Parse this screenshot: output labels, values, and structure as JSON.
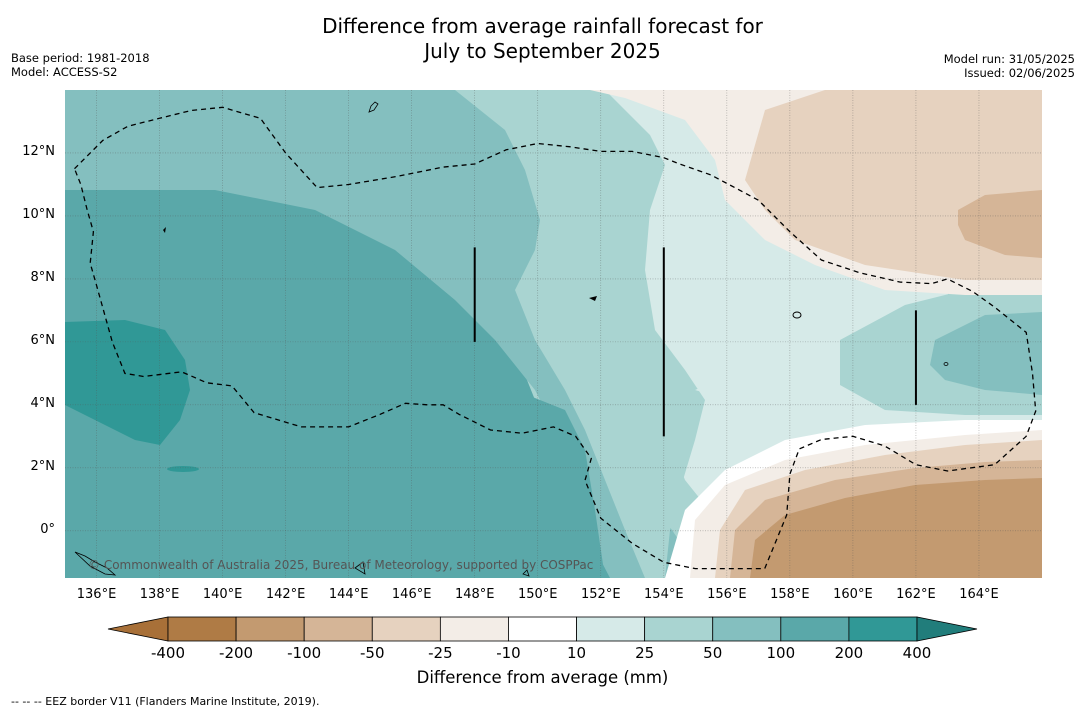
{
  "header": {
    "title_line1": "Difference from average rainfall forecast for",
    "title_line2": "July to September 2025",
    "base_period": "Base period: 1981-2018",
    "model": "Model: ACCESS-S2",
    "model_run": "Model run: 31/05/2025",
    "issued": "Issued: 02/06/2025"
  },
  "map": {
    "lon_range": [
      135,
      166
    ],
    "lat_range": [
      -1.5,
      14
    ],
    "lat_ticks": [
      {
        "value": 12,
        "label": "12°N"
      },
      {
        "value": 10,
        "label": "10°N"
      },
      {
        "value": 8,
        "label": "8°N"
      },
      {
        "value": 6,
        "label": "6°N"
      },
      {
        "value": 4,
        "label": "4°N"
      },
      {
        "value": 2,
        "label": "2°N"
      },
      {
        "value": 0,
        "label": "0°"
      }
    ],
    "lon_ticks": [
      {
        "value": 136,
        "label": "136°E"
      },
      {
        "value": 138,
        "label": "138°E"
      },
      {
        "value": 140,
        "label": "140°E"
      },
      {
        "value": 142,
        "label": "142°E"
      },
      {
        "value": 144,
        "label": "144°E"
      },
      {
        "value": 146,
        "label": "146°E"
      },
      {
        "value": 148,
        "label": "148°E"
      },
      {
        "value": 150,
        "label": "150°E"
      },
      {
        "value": 152,
        "label": "152°E"
      },
      {
        "value": 154,
        "label": "154°E"
      },
      {
        "value": 156,
        "label": "156°E"
      },
      {
        "value": 158,
        "label": "158°E"
      },
      {
        "value": 160,
        "label": "160°E"
      },
      {
        "value": 162,
        "label": "162°E"
      },
      {
        "value": 164,
        "label": "164°E"
      }
    ],
    "copyright": "© Commonwealth of Australia 2025, Bureau of Meteorology, supported by COSPPac",
    "eez_border": [
      [
        135.3,
        11.5
      ],
      [
        136.2,
        12.4
      ],
      [
        137.0,
        12.85
      ],
      [
        138.0,
        13.1
      ],
      [
        139.0,
        13.35
      ],
      [
        140.0,
        13.45
      ],
      [
        141.2,
        13.1
      ],
      [
        142.0,
        12.0
      ],
      [
        143.0,
        10.9
      ],
      [
        144.0,
        11.0
      ],
      [
        145.5,
        11.25
      ],
      [
        147.0,
        11.55
      ],
      [
        148.0,
        11.65
      ],
      [
        149.0,
        12.1
      ],
      [
        150.0,
        12.3
      ],
      [
        151.0,
        12.2
      ],
      [
        152.0,
        12.05
      ],
      [
        153.0,
        12.05
      ],
      [
        154.0,
        11.85
      ],
      [
        154.5,
        11.65
      ],
      [
        155.5,
        11.3
      ],
      [
        157.0,
        10.5
      ],
      [
        158.0,
        9.5
      ],
      [
        159.0,
        8.6
      ],
      [
        160.2,
        8.2
      ],
      [
        161.5,
        7.9
      ],
      [
        162.5,
        7.85
      ],
      [
        163.0,
        8.0
      ],
      [
        163.8,
        7.6
      ],
      [
        164.5,
        7.1
      ],
      [
        165.5,
        6.3
      ],
      [
        165.7,
        5.0
      ],
      [
        165.8,
        3.8
      ],
      [
        165.5,
        3.0
      ],
      [
        164.5,
        2.1
      ],
      [
        163.0,
        1.9
      ],
      [
        162.0,
        2.1
      ],
      [
        161.0,
        2.7
      ],
      [
        160.0,
        3.0
      ],
      [
        159.0,
        2.9
      ],
      [
        158.3,
        2.6
      ],
      [
        158.0,
        1.8
      ],
      [
        157.9,
        0.5
      ],
      [
        157.2,
        -1.2
      ],
      [
        156.8,
        -1.2
      ],
      [
        156.0,
        -1.2
      ],
      [
        155.0,
        -1.2
      ],
      [
        154.0,
        -1.0
      ],
      [
        153.0,
        -0.4
      ],
      [
        152.0,
        0.4
      ],
      [
        151.5,
        1.6
      ],
      [
        151.7,
        2.3
      ],
      [
        151.2,
        3.0
      ],
      [
        150.5,
        3.3
      ],
      [
        149.5,
        3.1
      ],
      [
        148.5,
        3.2
      ],
      [
        147.5,
        3.7
      ],
      [
        147.0,
        4.0
      ],
      [
        146.5,
        4.0
      ],
      [
        145.8,
        4.05
      ],
      [
        145.0,
        3.7
      ],
      [
        144.0,
        3.3
      ],
      [
        142.5,
        3.3
      ],
      [
        141.0,
        3.75
      ],
      [
        140.3,
        4.6
      ],
      [
        139.5,
        4.7
      ],
      [
        138.7,
        5.05
      ],
      [
        137.5,
        4.9
      ],
      [
        136.9,
        5.0
      ],
      [
        136.5,
        6.0
      ],
      [
        136.0,
        7.8
      ],
      [
        135.8,
        8.5
      ],
      [
        135.9,
        9.5
      ],
      [
        135.7,
        10.2
      ],
      [
        135.5,
        11.0
      ],
      [
        135.3,
        11.5
      ]
    ],
    "vertical_markers": [
      {
        "lon": 148.0,
        "lat_from": 6.0,
        "lat_to": 9.0
      },
      {
        "lon": 154.0,
        "lat_from": 3.0,
        "lat_to": 9.0
      },
      {
        "lon": 162.0,
        "lat_from": 4.0,
        "lat_to": 7.0
      }
    ]
  },
  "colorbar": {
    "label": "Difference from average (mm)",
    "ticks": [
      "-400",
      "-200",
      "-100",
      "-50",
      "-25",
      "-10",
      "10",
      "25",
      "50",
      "100",
      "200",
      "400"
    ],
    "colors": [
      "#a87038",
      "#af7b45",
      "#c39a70",
      "#d5b597",
      "#e6d2bf",
      "#f3ede7",
      "#ffffff",
      "#d6eae8",
      "#a9d4d1",
      "#84bfbf",
      "#5aa8a9",
      "#309896",
      "#217d7b"
    ]
  },
  "footnote": "--  --  -- EEZ border V11 (Flanders Marine Institute, 2019)."
}
